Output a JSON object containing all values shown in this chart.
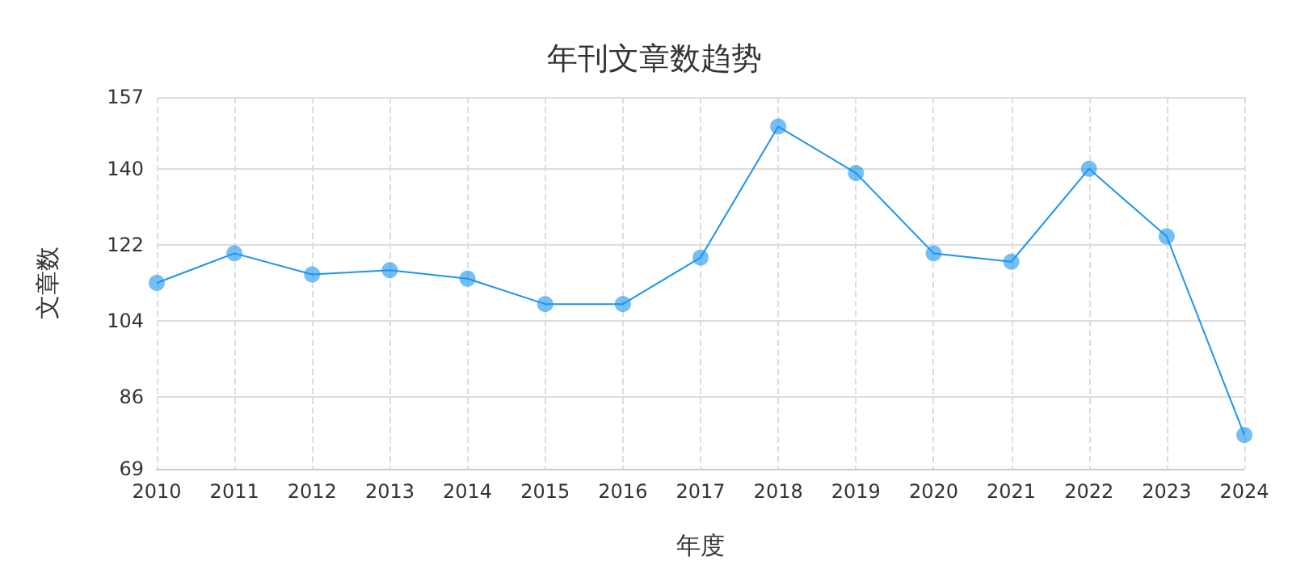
{
  "chart_data": {
    "type": "line",
    "title": "年刊文章数趋势",
    "xlabel": "年度",
    "ylabel": "文章数",
    "categories": [
      "2010",
      "2011",
      "2012",
      "2013",
      "2014",
      "2015",
      "2016",
      "2017",
      "2018",
      "2019",
      "2020",
      "2021",
      "2022",
      "2023",
      "2024"
    ],
    "series": [
      {
        "color": "#1a94f0",
        "values": [
          113,
          120,
          115,
          116,
          114,
          108,
          108,
          119,
          150,
          139,
          120,
          118,
          140,
          124,
          77
        ]
      }
    ],
    "ylim": [
      69,
      157
    ],
    "yticks": [
      69,
      86,
      104,
      122,
      140,
      157
    ],
    "grid": true,
    "marker": "circle",
    "line_style": "solid"
  }
}
